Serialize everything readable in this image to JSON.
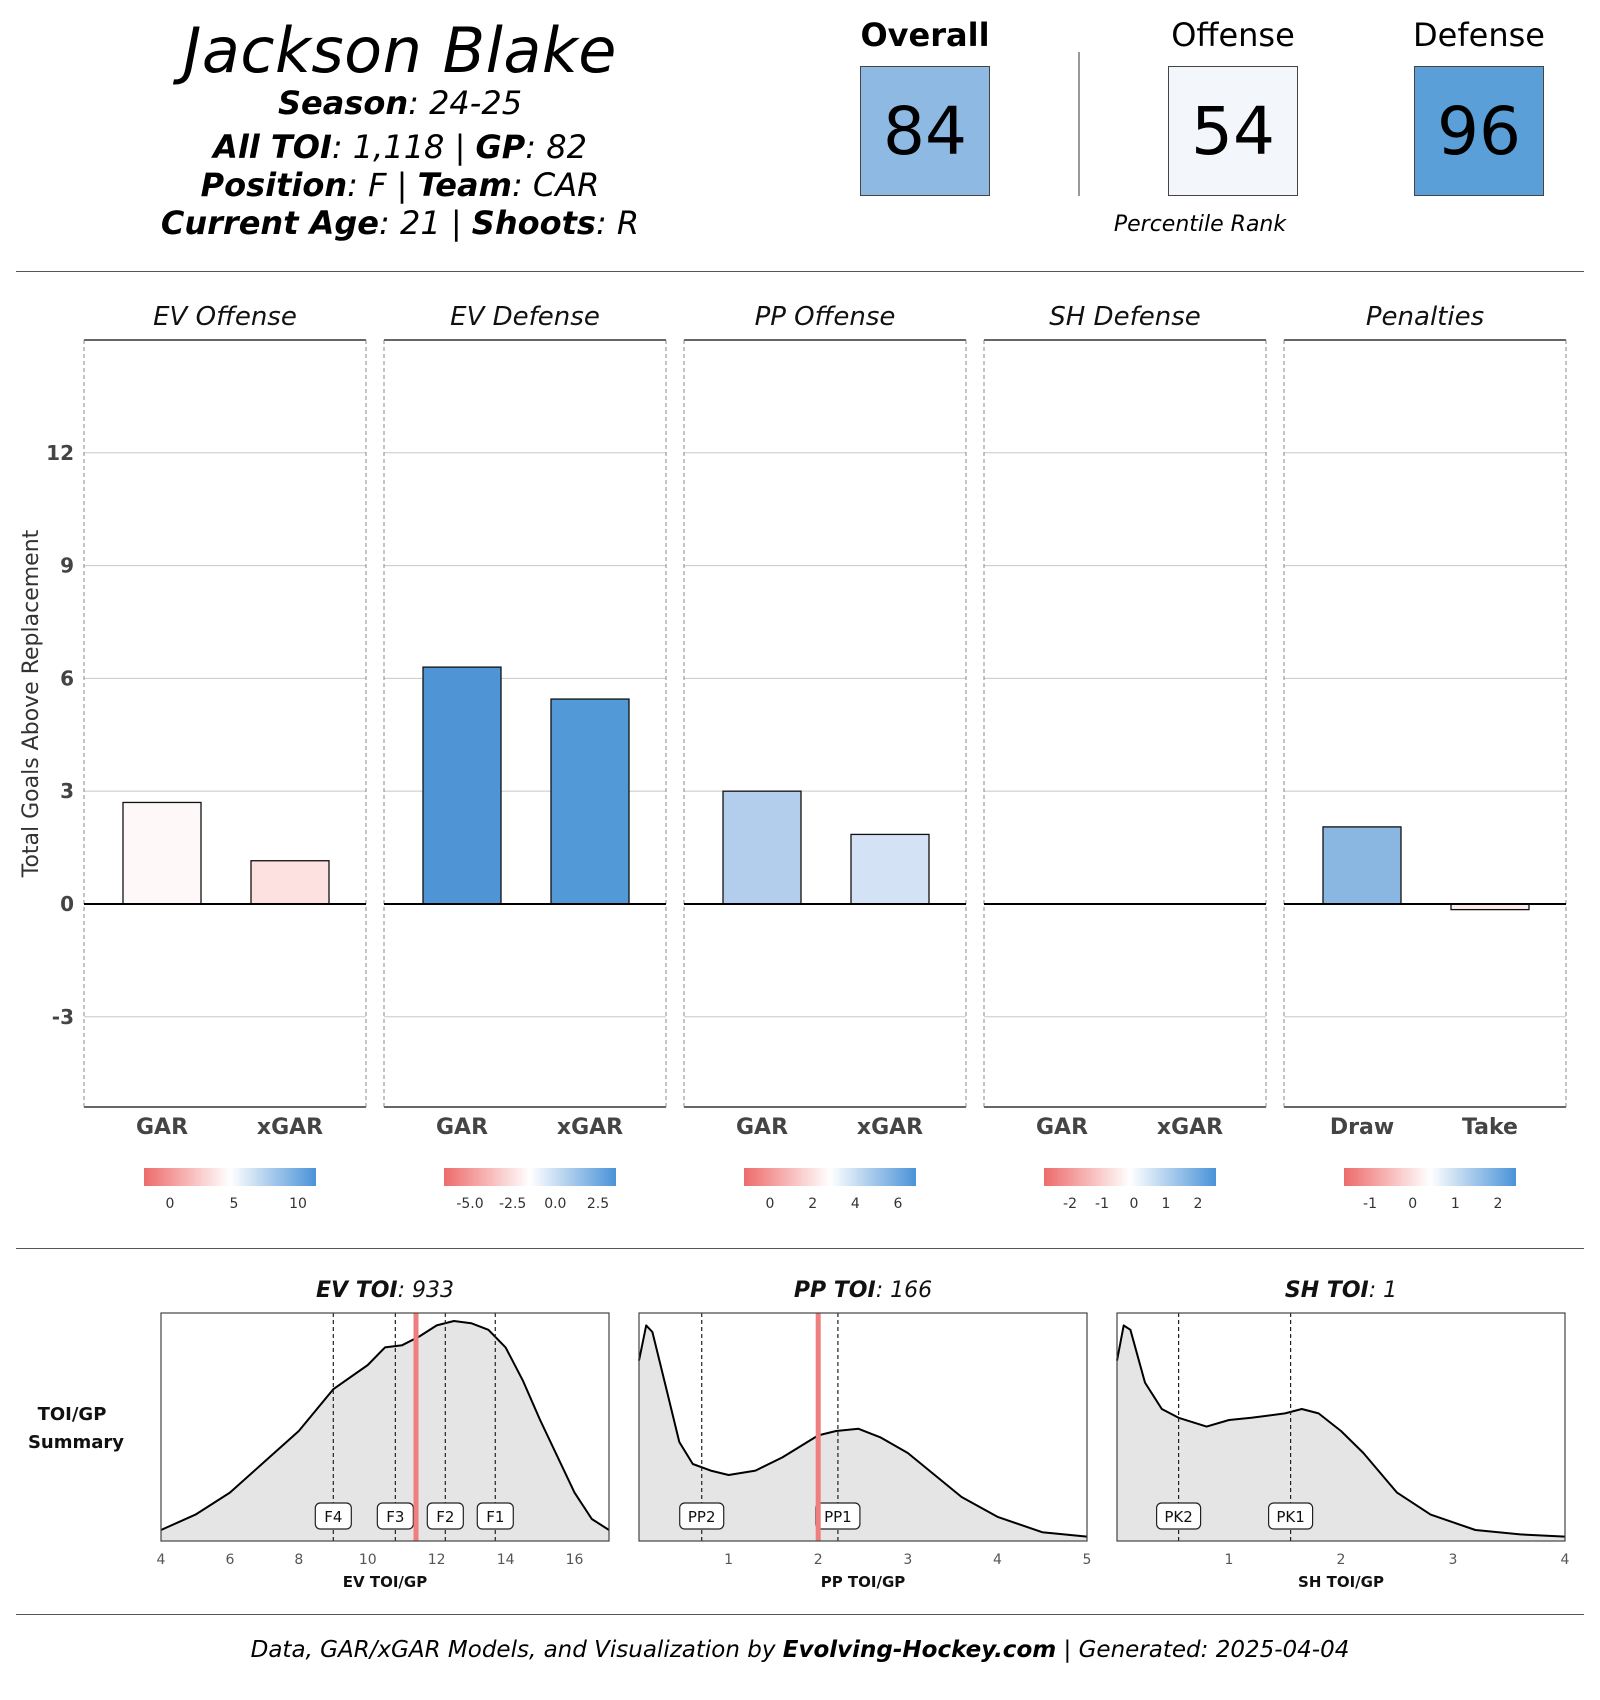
{
  "player": {
    "name": "Jackson Blake",
    "season_label": "Season",
    "season": "24-25",
    "toi_label": "All TOI",
    "toi": "1,118",
    "gp_label": "GP",
    "gp": "82",
    "position_label": "Position",
    "position": "F",
    "team_label": "Team",
    "team": "CAR",
    "age_label": "Current Age",
    "age": "21",
    "shoots_label": "Shoots",
    "shoots": "R"
  },
  "ratings": {
    "overall_label": "Overall",
    "overall": "84",
    "offense_label": "Offense",
    "offense": "54",
    "defense_label": "Defense",
    "defense": "96",
    "percentile_label": "Percentile Rank",
    "colors": {
      "overall": "#8db9e3",
      "offense": "#f3f6fb",
      "defense": "#5b9fd8"
    }
  },
  "chart_data": [
    {
      "type": "bar",
      "ylabel": "Total Goals Above Replacement",
      "ylim": [
        -5.4,
        15
      ],
      "yticks": [
        -3,
        0,
        3,
        6,
        9,
        12
      ],
      "grid": true,
      "facets": [
        {
          "title": "EV Offense",
          "categories": [
            "GAR",
            "xGAR"
          ],
          "values": [
            2.7,
            1.15
          ],
          "colors": [
            "#fff8f8",
            "#fde0e0"
          ],
          "scale": {
            "ticks": [
              "0",
              "5",
              "10"
            ]
          }
        },
        {
          "title": "EV Defense",
          "categories": [
            "GAR",
            "xGAR"
          ],
          "values": [
            6.3,
            5.45
          ],
          "colors": [
            "#4f95d6",
            "#5299d7"
          ],
          "scale": {
            "ticks": [
              "-5.0",
              "-2.5",
              "0.0",
              "2.5"
            ]
          }
        },
        {
          "title": "PP Offense",
          "categories": [
            "GAR",
            "xGAR"
          ],
          "values": [
            3.0,
            1.85
          ],
          "colors": [
            "#b3cdec",
            "#d3e2f4"
          ],
          "scale": {
            "ticks": [
              "0",
              "2",
              "4",
              "6"
            ]
          }
        },
        {
          "title": "SH Defense",
          "categories": [
            "GAR",
            "xGAR"
          ],
          "values": [
            0,
            0
          ],
          "colors": [
            "#ffffff",
            "#ffffff"
          ],
          "scale": {
            "ticks": [
              "-2",
              "-1",
              "0",
              "1",
              "2"
            ]
          }
        },
        {
          "title": "Penalties",
          "categories": [
            "Draw",
            "Take"
          ],
          "values": [
            2.05,
            -0.15
          ],
          "colors": [
            "#8ab6e2",
            "#fdecec"
          ],
          "scale": {
            "ticks": [
              "-1",
              "0",
              "1",
              "2"
            ]
          }
        }
      ]
    },
    {
      "type": "area",
      "row_label_line1": "TOI/GP",
      "row_label_line2": "Summary",
      "panels": [
        {
          "title_label": "EV TOI",
          "title_value": "933",
          "xlabel": "EV TOI/GP",
          "xlim": [
            4,
            17
          ],
          "xticks": [
            4,
            6,
            8,
            10,
            12,
            14,
            16
          ],
          "density": [
            [
              4,
              0.05
            ],
            [
              5,
              0.12
            ],
            [
              6,
              0.22
            ],
            [
              7,
              0.36
            ],
            [
              8,
              0.5
            ],
            [
              9,
              0.69
            ],
            [
              10,
              0.8
            ],
            [
              10.5,
              0.88
            ],
            [
              11,
              0.89
            ],
            [
              11.5,
              0.93
            ],
            [
              12,
              0.98
            ],
            [
              12.5,
              1.0
            ],
            [
              13,
              0.99
            ],
            [
              13.5,
              0.96
            ],
            [
              14,
              0.88
            ],
            [
              14.5,
              0.73
            ],
            [
              15,
              0.55
            ],
            [
              16,
              0.22
            ],
            [
              16.5,
              0.1
            ],
            [
              17,
              0.05
            ]
          ],
          "lines": [
            {
              "label": "F4",
              "x": 9.0
            },
            {
              "label": "F3",
              "x": 10.8
            },
            {
              "label": "F2",
              "x": 12.25
            },
            {
              "label": "F1",
              "x": 13.7
            }
          ],
          "player_x": 11.4
        },
        {
          "title_label": "PP TOI",
          "title_value": "166",
          "xlabel": "PP TOI/GP",
          "xlim": [
            0,
            5
          ],
          "xticks": [
            1,
            2,
            3,
            4,
            5
          ],
          "density": [
            [
              0,
              0.82
            ],
            [
              0.08,
              0.98
            ],
            [
              0.15,
              0.95
            ],
            [
              0.3,
              0.7
            ],
            [
              0.45,
              0.45
            ],
            [
              0.6,
              0.35
            ],
            [
              0.8,
              0.32
            ],
            [
              1.0,
              0.3
            ],
            [
              1.3,
              0.32
            ],
            [
              1.6,
              0.38
            ],
            [
              2.0,
              0.48
            ],
            [
              2.2,
              0.5
            ],
            [
              2.45,
              0.51
            ],
            [
              2.7,
              0.47
            ],
            [
              3.0,
              0.4
            ],
            [
              3.3,
              0.3
            ],
            [
              3.6,
              0.2
            ],
            [
              4.0,
              0.11
            ],
            [
              4.5,
              0.04
            ],
            [
              5,
              0.02
            ]
          ],
          "lines": [
            {
              "label": "PP2",
              "x": 0.7
            },
            {
              "label": "PP1",
              "x": 2.22
            }
          ],
          "player_x": 2.0
        },
        {
          "title_label": "SH TOI",
          "title_value": "1",
          "xlabel": "SH TOI/GP",
          "xlim": [
            0,
            4
          ],
          "xticks": [
            1,
            2,
            3,
            4
          ],
          "density": [
            [
              0,
              0.82
            ],
            [
              0.06,
              0.98
            ],
            [
              0.12,
              0.96
            ],
            [
              0.25,
              0.72
            ],
            [
              0.4,
              0.6
            ],
            [
              0.55,
              0.56
            ],
            [
              0.8,
              0.52
            ],
            [
              1.0,
              0.55
            ],
            [
              1.2,
              0.56
            ],
            [
              1.5,
              0.58
            ],
            [
              1.65,
              0.6
            ],
            [
              1.8,
              0.58
            ],
            [
              2.0,
              0.5
            ],
            [
              2.2,
              0.4
            ],
            [
              2.5,
              0.22
            ],
            [
              2.8,
              0.12
            ],
            [
              3.2,
              0.05
            ],
            [
              3.6,
              0.03
            ],
            [
              4.0,
              0.02
            ]
          ],
          "lines": [
            {
              "label": "PK2",
              "x": 0.55
            },
            {
              "label": "PK1",
              "x": 1.55
            }
          ],
          "player_x": null
        }
      ]
    }
  ],
  "footer": {
    "prefix": "Data, GAR/xGAR Models, and Visualization by",
    "site": "Evolving-Hockey.com",
    "separator": "|",
    "generated_label": "Generated:",
    "generated": "2025-04-04"
  }
}
